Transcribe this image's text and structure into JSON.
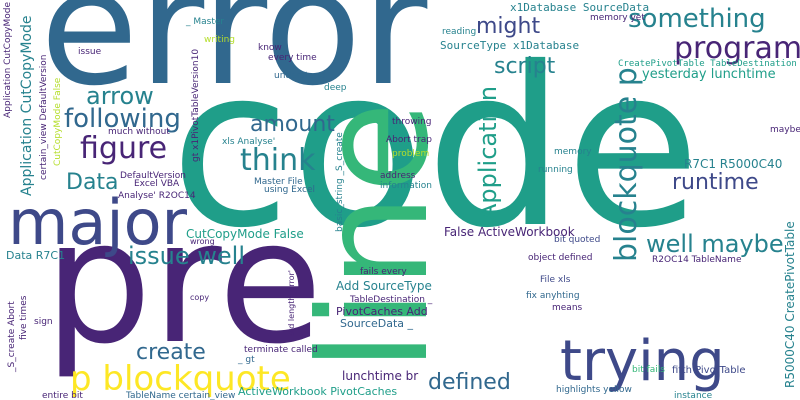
{
  "colors": {
    "background": "#ffffff",
    "dark_purple": "#482576",
    "deep_purple": "#3e4989",
    "blue": "#31688e",
    "teal": "#26828e",
    "teal_green": "#1f9e89",
    "green": "#35b779",
    "light_green": "#6ece58",
    "yellow_green": "#b5de2b",
    "yellow": "#fde725"
  },
  "words": {
    "error": "error",
    "code": "code",
    "pre": "pre",
    "line": "line",
    "major": "major",
    "trying": "trying",
    "p_blockquote": "p blockquote",
    "blockquote_p": "blockquote p",
    "program": "program",
    "something": "something",
    "might": "might",
    "script": "script",
    "application": "Application",
    "arrow": "arrow",
    "following": "following",
    "figure": "figure",
    "amount": "amount",
    "think": "think",
    "data": "Data",
    "runtime": "runtime",
    "issue_well": "issue well",
    "well_maybe": "well maybe",
    "create": "create",
    "defined": "defined",
    "x1database_sourcedata": "x1Database SourceData",
    "sourcetype_x1database": "SourceType x1Database",
    "yesterday_lunchtime": "yesterday lunchtime",
    "createpivottable_tabledestination": "CreatePivotTable TableDestination",
    "r7c1_r5000c40": "R7C1 R5000C40",
    "r5000c40_createpivottable": "R5000C40 CreatePivotTable",
    "r2oc14_tablename": "R2OC14 TableName",
    "fifth_pivottable": "fifth PivotTable",
    "bit_fails": "bit fails",
    "maybe": "maybe",
    "instance": "instance",
    "highlights_yellow": "highlights yellow",
    "means": "means",
    "fix_anyhting": "fix anyhting",
    "file_xls": "File xls",
    "object_defined": "object defined",
    "bit_quoted": "bit quoted",
    "false_activeworkbook": "False ActiveWorkbook",
    "cutcopymode_false": "CutCopyMode False",
    "activeworkbook_pivotcaches": "ActiveWorkbook PivotCaches",
    "lunchtime_br": "lunchtime br",
    "add_sourcetype": "Add SourceType",
    "tabledestination": "TableDestination _",
    "pivotcaches_add": "PivotCaches Add",
    "sourcedata": "SourceData _",
    "fails_every": "fails every",
    "terminate_called": "terminate called",
    "gt": "_ gt",
    "tablename_certain_view": "TableName certain_view",
    "entire_bit": "entire bit",
    "copy": "copy",
    "wrong": "wrong",
    "std_length_error": "std length_error'",
    "data_r7c1": "Data R7C1",
    "excel_vba": "Excel VBA",
    "analyse_r2oc14": "Analyse' R2OC14",
    "defaultversion": "DefaultVersion",
    "xls_analyse": "xls Analyse'",
    "master_file": "Master File",
    "using_excel": "using Excel",
    "basic_string_s_create": "basic_string _S_create",
    "abort_trap": "Abort trap",
    "throwing": "throwing",
    "problem": "problem",
    "address": "address",
    "information": "information",
    "memory": "memory",
    "running": "running",
    "reading": "reading",
    "memory_yet": "memory yet",
    "master": "_ Master",
    "writing": "writing",
    "know": "know",
    "every_time": "every time",
    "understand": "understand",
    "deep": "deep",
    "issue": "issue",
    "much_without": "much without",
    "gt_x1pivottableversion10": "gt x1PivotTableVersion10",
    "certain_view_defaultversion": "certain_view DefaultVersion",
    "cutcopymode_false_small": "CutCopyMode False",
    "application_cutcopymode": "Application CutCopyMode",
    "application_cutcopymode_small": "Application CutCopyMode",
    "s_create_abort": "_S_create Abort",
    "five_times": "five times",
    "sign": "sign"
  }
}
